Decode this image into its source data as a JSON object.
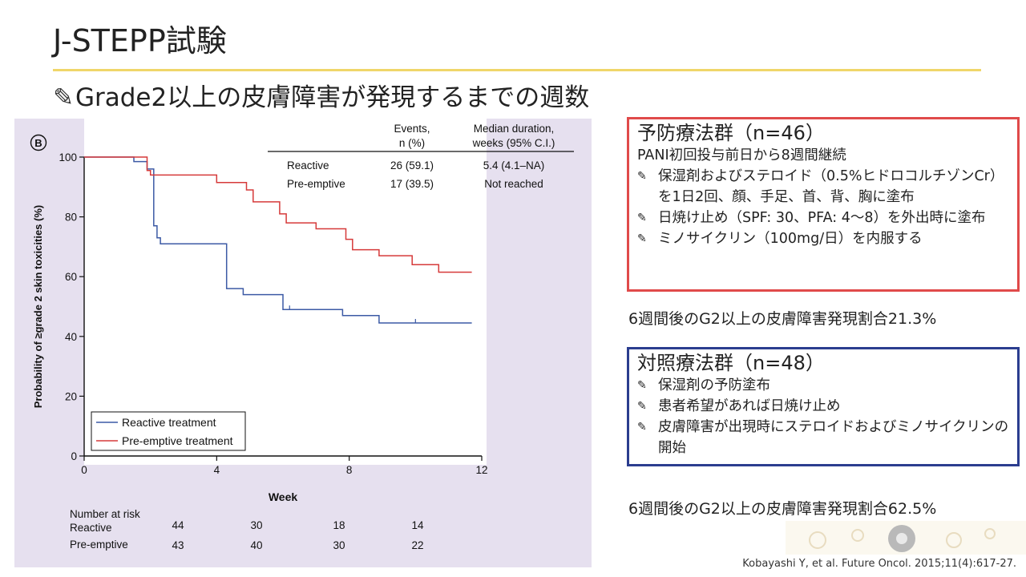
{
  "slide": {
    "title": "J-STEPP試験",
    "subtitle": "Grade2以上の皮膚障害が発現するまでの週数",
    "pen_glyph": "✎"
  },
  "chart_data": {
    "type": "line",
    "subtype": "kaplan-meier",
    "panel_label": "B",
    "xlabel": "Week",
    "ylabel": "Probability of ≥grade 2 skin toxicities (%)",
    "xlim": [
      0,
      12
    ],
    "ylim": [
      0,
      100
    ],
    "xticks": [
      0,
      4,
      8,
      12
    ],
    "yticks": [
      0,
      20,
      40,
      60,
      80,
      100
    ],
    "legend_position": "bottom-left",
    "legend": [
      "Reactive treatment",
      "Pre-emptive treatment"
    ],
    "series": [
      {
        "name": "Reactive treatment",
        "color": "#3c5aa5",
        "steps": [
          [
            0,
            100
          ],
          [
            1.5,
            100
          ],
          [
            1.5,
            98.5
          ],
          [
            1.9,
            98.5
          ],
          [
            1.9,
            96
          ],
          [
            2.1,
            96
          ],
          [
            2.1,
            77
          ],
          [
            2.2,
            77
          ],
          [
            2.2,
            73
          ],
          [
            2.3,
            73
          ],
          [
            2.3,
            71
          ],
          [
            4.3,
            71
          ],
          [
            4.3,
            56
          ],
          [
            4.8,
            56
          ],
          [
            4.8,
            54
          ],
          [
            6.0,
            54
          ],
          [
            6.0,
            49
          ],
          [
            7.8,
            49
          ],
          [
            7.8,
            47
          ],
          [
            8.9,
            47
          ],
          [
            8.9,
            44.5
          ],
          [
            11.7,
            44.5
          ]
        ],
        "censor_x": [
          6.2,
          10.0
        ]
      },
      {
        "name": "Pre-emptive treatment",
        "color": "#d63a3a",
        "steps": [
          [
            0,
            100
          ],
          [
            1.9,
            100
          ],
          [
            1.9,
            95.5
          ],
          [
            2.0,
            95.5
          ],
          [
            2.0,
            94
          ],
          [
            4.0,
            94
          ],
          [
            4.0,
            91.5
          ],
          [
            4.9,
            91.5
          ],
          [
            4.9,
            89
          ],
          [
            5.1,
            89
          ],
          [
            5.1,
            85
          ],
          [
            5.9,
            85
          ],
          [
            5.9,
            81
          ],
          [
            6.1,
            81
          ],
          [
            6.1,
            78
          ],
          [
            7.0,
            78
          ],
          [
            7.0,
            76
          ],
          [
            7.9,
            76
          ],
          [
            7.9,
            72.5
          ],
          [
            8.1,
            72.5
          ],
          [
            8.1,
            69
          ],
          [
            8.9,
            69
          ],
          [
            8.9,
            67
          ],
          [
            9.9,
            67
          ],
          [
            9.9,
            64
          ],
          [
            10.7,
            64
          ],
          [
            10.7,
            61.5
          ],
          [
            11.7,
            61.5
          ]
        ],
        "censor_x": []
      }
    ],
    "events_table": {
      "col1_header_l1": "Events,",
      "col1_header_l2": "n (%)",
      "col2_header_l1": "Median duration,",
      "col2_header_l2": "weeks (95% C.I.)",
      "rows": [
        {
          "label": "Reactive",
          "events": "26 (59.1)",
          "median": "5.4 (4.1–NA)"
        },
        {
          "label": "Pre-emptive",
          "events": "17 (39.5)",
          "median": "Not reached"
        }
      ]
    },
    "risk_table": {
      "header": "Number at risk",
      "x": [
        0,
        4,
        8,
        12
      ],
      "rows": [
        {
          "label": "Reactive",
          "values": [
            "44",
            "30",
            "18",
            "14"
          ]
        },
        {
          "label": "Pre-emptive",
          "values": [
            "43",
            "40",
            "30",
            "22"
          ]
        }
      ]
    }
  },
  "preventive": {
    "title": "予防療法群（n=46）",
    "lead": "PANI初回投与前日から8週間継続",
    "bullets": [
      "保湿剤およびステロイド（0.5%ヒドロコルチゾンCr）を1日2回、顔、手足、首、背、胸に塗布",
      "日焼け止め（SPF: 30、PFA: 4〜8）を外出時に塗布",
      "ミノサイクリン（100mg/日）を内服する"
    ],
    "border_color": "#e04a4a"
  },
  "result_preventive": "6週間後のG2以上の皮膚障害発現割合21.3%",
  "control": {
    "title": "対照療法群（n=48）",
    "bullets": [
      "保湿剤の予防塗布",
      "患者希望があれば日焼け止め",
      "皮膚障害が出現時にステロイドおよびミノサイクリンの開始"
    ],
    "border_color": "#2b3d8f"
  },
  "result_control": "6週間後のG2以上の皮膚障害発現割合62.5%",
  "citation": "Kobayashi Y, et al. Future Oncol. 2015;11(4):617-27."
}
